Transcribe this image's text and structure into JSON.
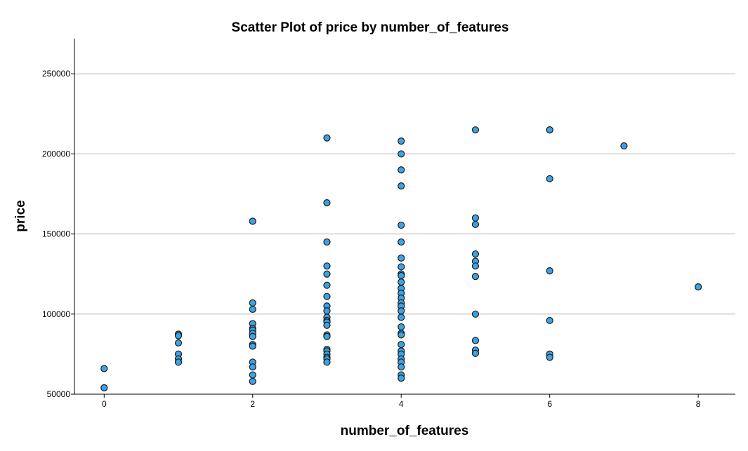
{
  "chart_data": {
    "type": "scatter",
    "title": "Scatter Plot of price by number_of_features",
    "xlabel": "number_of_features",
    "ylabel": "price",
    "xlim": [
      -0.4,
      8.5
    ],
    "ylim": [
      50000,
      272000
    ],
    "xticks": [
      0,
      2,
      4,
      6,
      8
    ],
    "yticks": [
      50000,
      100000,
      150000,
      200000,
      250000
    ],
    "grid": "horizontal",
    "point_color": "#3aa3e3",
    "points": [
      {
        "x": 0,
        "y": 66000
      },
      {
        "x": 0,
        "y": 54000
      },
      {
        "x": 1,
        "y": 87500
      },
      {
        "x": 1,
        "y": 86500
      },
      {
        "x": 1,
        "y": 82000
      },
      {
        "x": 1,
        "y": 75000
      },
      {
        "x": 1,
        "y": 72000
      },
      {
        "x": 1,
        "y": 70000
      },
      {
        "x": 2,
        "y": 158000
      },
      {
        "x": 2,
        "y": 107000
      },
      {
        "x": 2,
        "y": 103000
      },
      {
        "x": 2,
        "y": 94000
      },
      {
        "x": 2,
        "y": 91000
      },
      {
        "x": 2,
        "y": 90000
      },
      {
        "x": 2,
        "y": 88000
      },
      {
        "x": 2,
        "y": 86000
      },
      {
        "x": 2,
        "y": 81000
      },
      {
        "x": 2,
        "y": 80000
      },
      {
        "x": 2,
        "y": 70000
      },
      {
        "x": 2,
        "y": 67000
      },
      {
        "x": 2,
        "y": 62000
      },
      {
        "x": 2,
        "y": 58000
      },
      {
        "x": 3,
        "y": 210000
      },
      {
        "x": 3,
        "y": 169500
      },
      {
        "x": 3,
        "y": 145000
      },
      {
        "x": 3,
        "y": 130000
      },
      {
        "x": 3,
        "y": 125000
      },
      {
        "x": 3,
        "y": 118000
      },
      {
        "x": 3,
        "y": 111000
      },
      {
        "x": 3,
        "y": 105000
      },
      {
        "x": 3,
        "y": 102000
      },
      {
        "x": 3,
        "y": 98000
      },
      {
        "x": 3,
        "y": 96000
      },
      {
        "x": 3,
        "y": 95000
      },
      {
        "x": 3,
        "y": 93000
      },
      {
        "x": 3,
        "y": 87000
      },
      {
        "x": 3,
        "y": 86000
      },
      {
        "x": 3,
        "y": 78000
      },
      {
        "x": 3,
        "y": 77000
      },
      {
        "x": 3,
        "y": 75000
      },
      {
        "x": 3,
        "y": 73000
      },
      {
        "x": 3,
        "y": 72000
      },
      {
        "x": 3,
        "y": 70000
      },
      {
        "x": 4,
        "y": 208000
      },
      {
        "x": 4,
        "y": 200000
      },
      {
        "x": 4,
        "y": 190000
      },
      {
        "x": 4,
        "y": 180000
      },
      {
        "x": 4,
        "y": 155500
      },
      {
        "x": 4,
        "y": 145000
      },
      {
        "x": 4,
        "y": 135000
      },
      {
        "x": 4,
        "y": 129500
      },
      {
        "x": 4,
        "y": 125000
      },
      {
        "x": 4,
        "y": 124000
      },
      {
        "x": 4,
        "y": 120000
      },
      {
        "x": 4,
        "y": 116000
      },
      {
        "x": 4,
        "y": 113000
      },
      {
        "x": 4,
        "y": 110000
      },
      {
        "x": 4,
        "y": 107000
      },
      {
        "x": 4,
        "y": 105000
      },
      {
        "x": 4,
        "y": 102000
      },
      {
        "x": 4,
        "y": 98000
      },
      {
        "x": 4,
        "y": 92000
      },
      {
        "x": 4,
        "y": 88000
      },
      {
        "x": 4,
        "y": 87000
      },
      {
        "x": 4,
        "y": 81000
      },
      {
        "x": 4,
        "y": 77000
      },
      {
        "x": 4,
        "y": 75000
      },
      {
        "x": 4,
        "y": 72000
      },
      {
        "x": 4,
        "y": 70000
      },
      {
        "x": 4,
        "y": 67000
      },
      {
        "x": 4,
        "y": 62000
      },
      {
        "x": 4,
        "y": 60000
      },
      {
        "x": 5,
        "y": 215000
      },
      {
        "x": 5,
        "y": 160000
      },
      {
        "x": 5,
        "y": 156000
      },
      {
        "x": 5,
        "y": 137500
      },
      {
        "x": 5,
        "y": 133000
      },
      {
        "x": 5,
        "y": 130000
      },
      {
        "x": 5,
        "y": 123500
      },
      {
        "x": 5,
        "y": 100000
      },
      {
        "x": 5,
        "y": 83500
      },
      {
        "x": 5,
        "y": 77500
      },
      {
        "x": 5,
        "y": 75500
      },
      {
        "x": 6,
        "y": 215000
      },
      {
        "x": 6,
        "y": 215000
      },
      {
        "x": 6,
        "y": 184500
      },
      {
        "x": 6,
        "y": 127000
      },
      {
        "x": 6,
        "y": 96000
      },
      {
        "x": 6,
        "y": 75000
      },
      {
        "x": 6,
        "y": 73000
      },
      {
        "x": 7,
        "y": 205000
      },
      {
        "x": 8,
        "y": 117000
      }
    ]
  }
}
